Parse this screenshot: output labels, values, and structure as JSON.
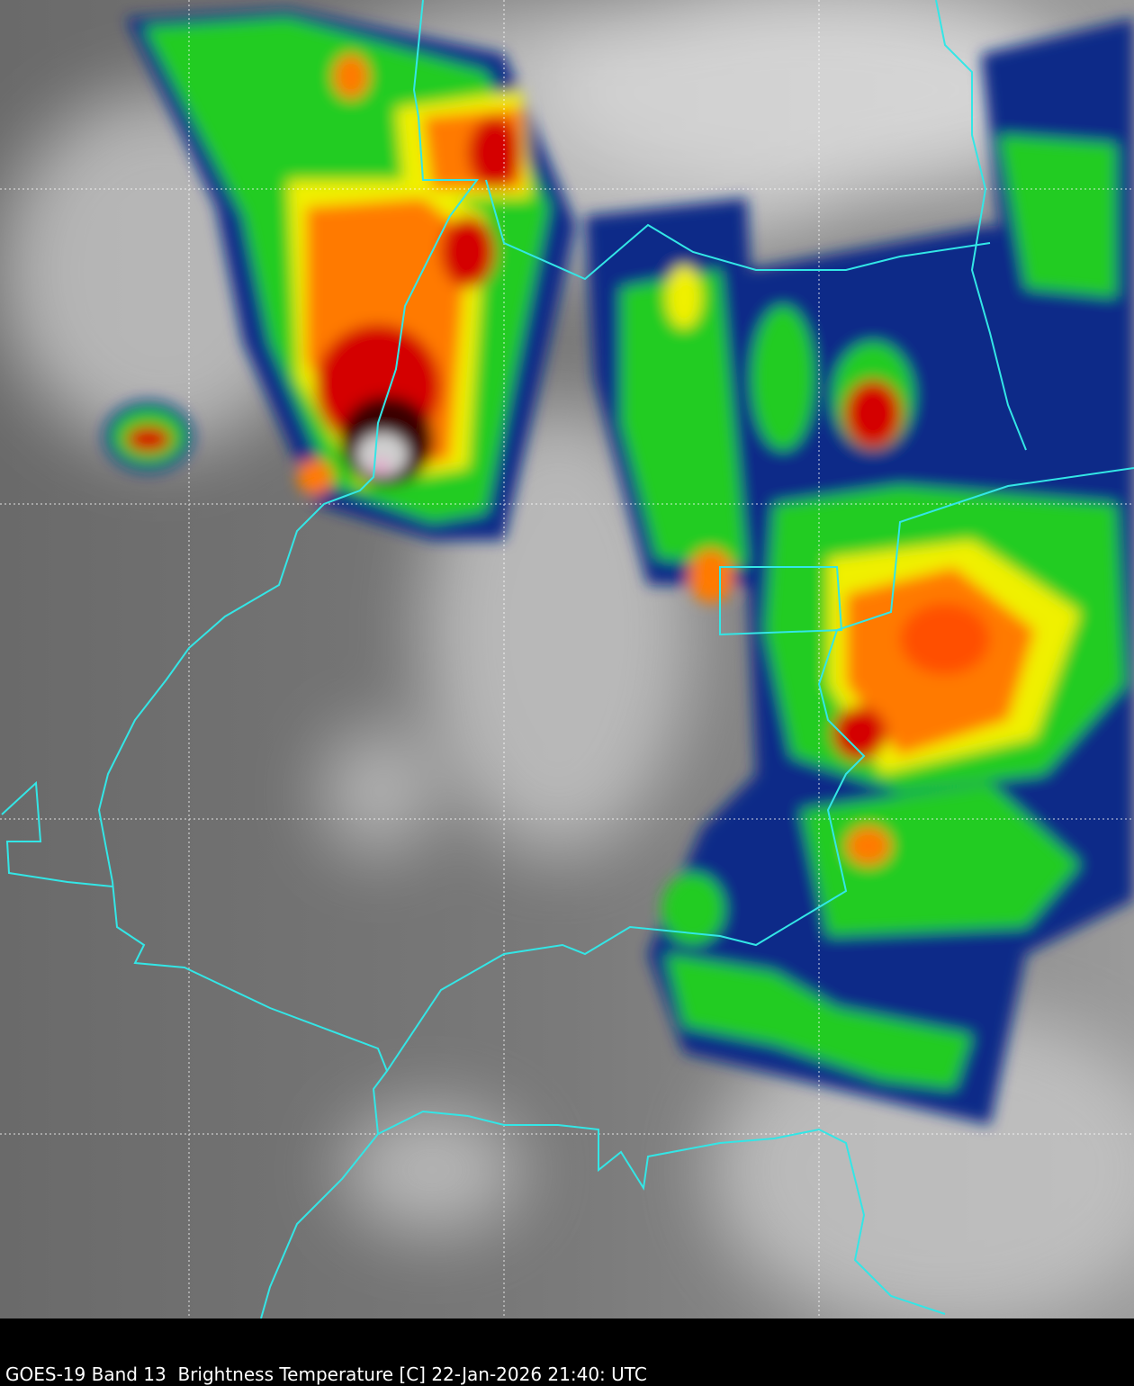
{
  "caption": "GOES-19 Band 13  Brightness Temperature [C] 22-Jan-2026 21:40: UTC",
  "colors": {
    "border": "#33e6e6",
    "grid": "#ffffff",
    "background": "#000000",
    "cold_scale": [
      "#003080",
      "#00c8e0",
      "#00d000",
      "#ffff00",
      "#ff8000",
      "#e00000",
      "#400000",
      "#f0f0f0",
      "#ff60c0"
    ]
  }
}
